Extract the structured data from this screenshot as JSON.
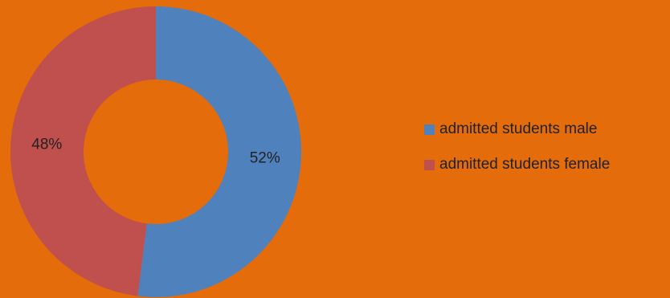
{
  "chart_data": {
    "type": "pie",
    "variant": "donut",
    "title": "",
    "categories": [
      "admitted students male",
      "admitted students female"
    ],
    "values": [
      52,
      48
    ],
    "labels": [
      "52%",
      "48%"
    ],
    "colors": [
      "#4F81BD",
      "#C0504D"
    ],
    "background": "#E46C0A",
    "legend_position": "right"
  }
}
